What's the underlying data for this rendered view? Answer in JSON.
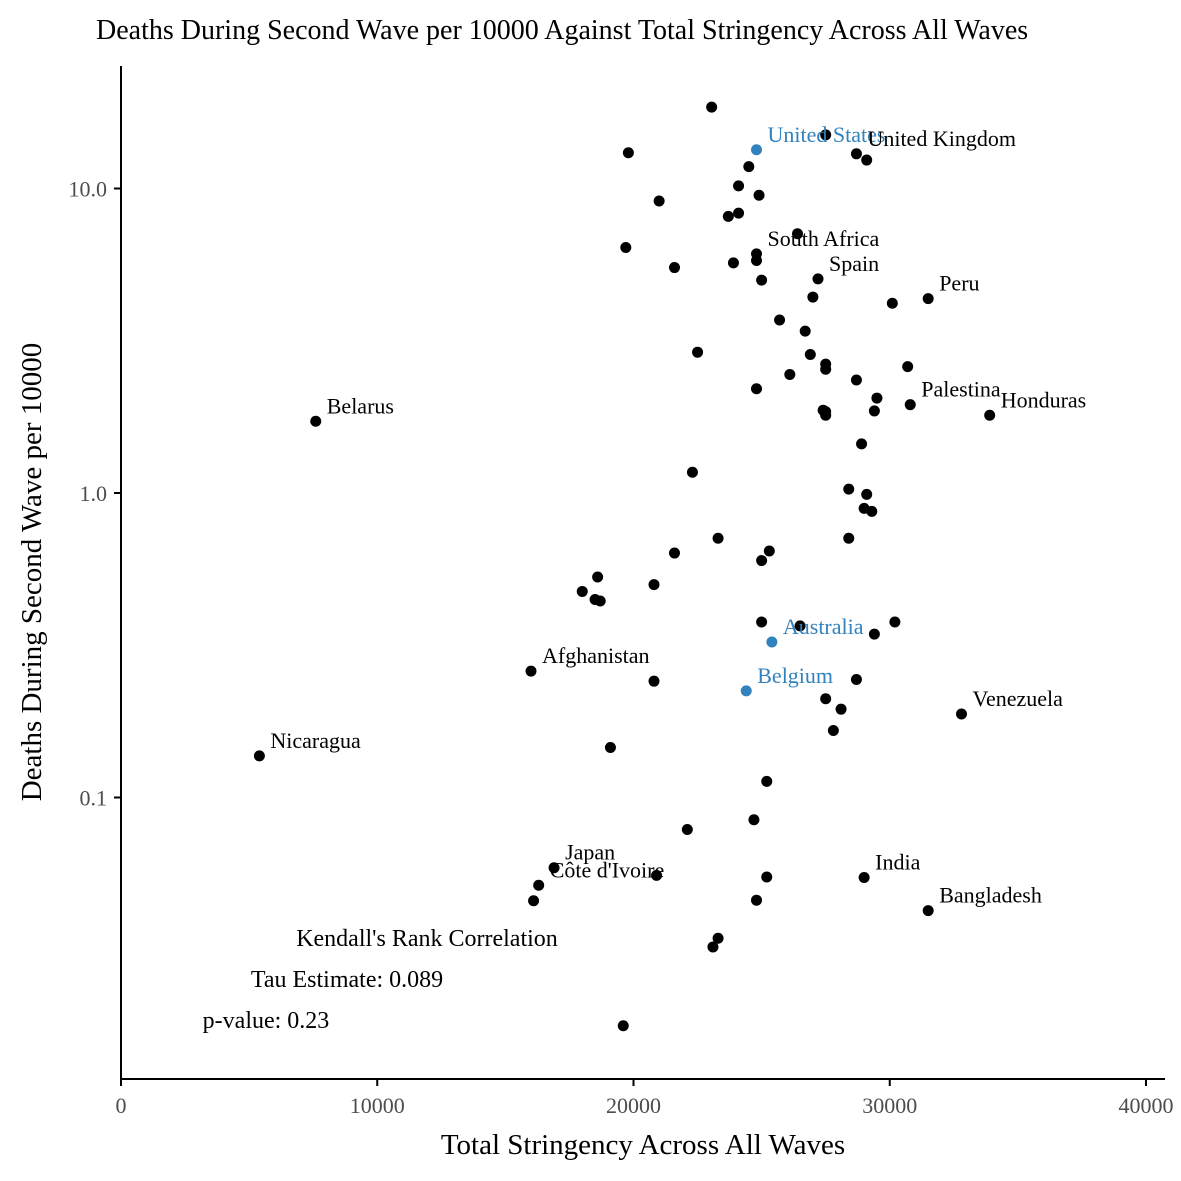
{
  "chart_data": {
    "type": "scatter",
    "title": "Deaths During Second Wave per 10000 Against Total Stringency Across All Waves",
    "xlabel": "Total Stringency Across All Waves",
    "ylabel": "Deaths During Second Wave per 10000",
    "x_scale": "linear",
    "y_scale": "log10",
    "xlim": [
      0,
      40000
    ],
    "ylim": [
      0.013,
      23
    ],
    "x_ticks": [
      0,
      10000,
      20000,
      30000,
      40000
    ],
    "x_tick_labels": [
      "0",
      "10000",
      "20000",
      "30000",
      "40000"
    ],
    "y_ticks": [
      0.1,
      1.0,
      10.0
    ],
    "y_tick_labels": [
      "0.1",
      "1.0",
      "10.0"
    ],
    "grid": false,
    "legend": "none",
    "colors": {
      "default": "#000000",
      "highlight": "#3182bd",
      "axis_text": "#4d4d4d"
    },
    "annotation": {
      "heading": "Kendall's Rank Correlation",
      "tau": "Tau Estimate: 0.089",
      "pvalue": "p-value: 0.23"
    },
    "points": [
      {
        "x": 23050,
        "y": 18.5
      },
      {
        "x": 24800,
        "y": 13.4,
        "label": "United States",
        "highlight": true
      },
      {
        "x": 27500,
        "y": 15.0
      },
      {
        "x": 28700,
        "y": 13.0,
        "label": "United Kingdom"
      },
      {
        "x": 29100,
        "y": 12.4
      },
      {
        "x": 19800,
        "y": 13.1
      },
      {
        "x": 24500,
        "y": 11.8
      },
      {
        "x": 24100,
        "y": 10.2
      },
      {
        "x": 24900,
        "y": 9.5
      },
      {
        "x": 21000,
        "y": 9.1
      },
      {
        "x": 24100,
        "y": 8.3
      },
      {
        "x": 23700,
        "y": 8.1
      },
      {
        "x": 26400,
        "y": 7.1
      },
      {
        "x": 19700,
        "y": 6.4
      },
      {
        "x": 24800,
        "y": 6.1,
        "label": "South Africa"
      },
      {
        "x": 24800,
        "y": 5.8
      },
      {
        "x": 21600,
        "y": 5.5
      },
      {
        "x": 23900,
        "y": 5.7
      },
      {
        "x": 25000,
        "y": 5.0
      },
      {
        "x": 27200,
        "y": 5.05,
        "label": "Spain"
      },
      {
        "x": 27000,
        "y": 4.4
      },
      {
        "x": 30100,
        "y": 4.2
      },
      {
        "x": 31500,
        "y": 4.35,
        "label": "Peru"
      },
      {
        "x": 25700,
        "y": 3.7
      },
      {
        "x": 26700,
        "y": 3.4
      },
      {
        "x": 22500,
        "y": 2.9
      },
      {
        "x": 26900,
        "y": 2.85
      },
      {
        "x": 27500,
        "y": 2.65
      },
      {
        "x": 27500,
        "y": 2.55
      },
      {
        "x": 30700,
        "y": 2.6
      },
      {
        "x": 26100,
        "y": 2.45
      },
      {
        "x": 28700,
        "y": 2.35
      },
      {
        "x": 24800,
        "y": 2.2
      },
      {
        "x": 29500,
        "y": 2.05
      },
      {
        "x": 30800,
        "y": 1.95,
        "label": "Palestina"
      },
      {
        "x": 27400,
        "y": 1.87
      },
      {
        "x": 27500,
        "y": 1.85
      },
      {
        "x": 27500,
        "y": 1.8
      },
      {
        "x": 29400,
        "y": 1.86
      },
      {
        "x": 33900,
        "y": 1.8,
        "label": "Honduras"
      },
      {
        "x": 7600,
        "y": 1.72,
        "label": "Belarus"
      },
      {
        "x": 28900,
        "y": 1.45
      },
      {
        "x": 22300,
        "y": 1.17
      },
      {
        "x": 28400,
        "y": 1.03
      },
      {
        "x": 29100,
        "y": 0.99
      },
      {
        "x": 29000,
        "y": 0.89
      },
      {
        "x": 29300,
        "y": 0.87
      },
      {
        "x": 23300,
        "y": 0.71
      },
      {
        "x": 28400,
        "y": 0.71
      },
      {
        "x": 21600,
        "y": 0.635
      },
      {
        "x": 25300,
        "y": 0.645
      },
      {
        "x": 25000,
        "y": 0.6
      },
      {
        "x": 18600,
        "y": 0.53
      },
      {
        "x": 20800,
        "y": 0.5
      },
      {
        "x": 18000,
        "y": 0.475
      },
      {
        "x": 18500,
        "y": 0.447
      },
      {
        "x": 18700,
        "y": 0.442
      },
      {
        "x": 25000,
        "y": 0.377
      },
      {
        "x": 26500,
        "y": 0.366
      },
      {
        "x": 25400,
        "y": 0.324,
        "label": "Australia",
        "highlight": true
      },
      {
        "x": 29400,
        "y": 0.344
      },
      {
        "x": 30200,
        "y": 0.377
      },
      {
        "x": 16000,
        "y": 0.26,
        "label": "Afghanistan"
      },
      {
        "x": 20800,
        "y": 0.241
      },
      {
        "x": 28700,
        "y": 0.244
      },
      {
        "x": 24400,
        "y": 0.224,
        "label": "Belgium",
        "highlight": true
      },
      {
        "x": 27500,
        "y": 0.211
      },
      {
        "x": 28100,
        "y": 0.195
      },
      {
        "x": 32800,
        "y": 0.188,
        "label": "Venezuela"
      },
      {
        "x": 27800,
        "y": 0.166
      },
      {
        "x": 19100,
        "y": 0.146
      },
      {
        "x": 5400,
        "y": 0.137,
        "label": "Nicaragua"
      },
      {
        "x": 25200,
        "y": 0.113
      },
      {
        "x": 24700,
        "y": 0.0845
      },
      {
        "x": 22100,
        "y": 0.0785
      },
      {
        "x": 16900,
        "y": 0.0588,
        "label": "Japan"
      },
      {
        "x": 20900,
        "y": 0.0555
      },
      {
        "x": 25200,
        "y": 0.0548
      },
      {
        "x": 29000,
        "y": 0.0546,
        "label": "India"
      },
      {
        "x": 16300,
        "y": 0.0515,
        "label": "Côte d'Ivoire"
      },
      {
        "x": 16100,
        "y": 0.0458
      },
      {
        "x": 24800,
        "y": 0.046
      },
      {
        "x": 31500,
        "y": 0.0425,
        "label": "Bangladesh"
      },
      {
        "x": 23300,
        "y": 0.0345
      },
      {
        "x": 23100,
        "y": 0.0323
      },
      {
        "x": 19600,
        "y": 0.0178
      }
    ]
  }
}
